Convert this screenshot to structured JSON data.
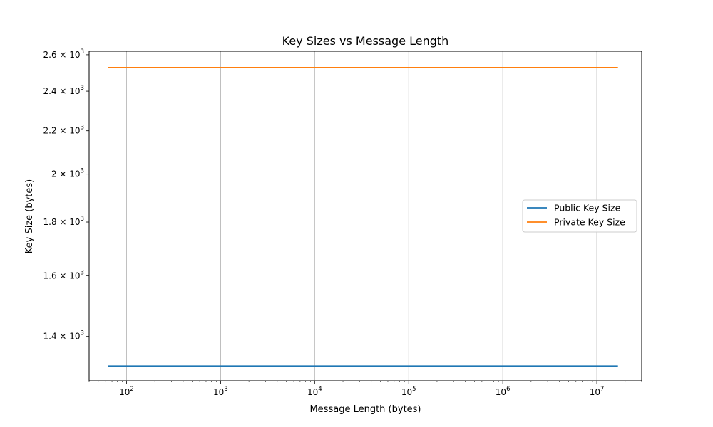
{
  "chart_data": {
    "type": "line",
    "title": "Key Sizes vs Message Length",
    "xlabel": "Message Length (bytes)",
    "ylabel": "Key Size (bytes)",
    "xscale": "log",
    "yscale": "log",
    "xlim": [
      40,
      30000000
    ],
    "ylim": [
      1270,
      2620
    ],
    "x": [
      64,
      128,
      256,
      512,
      1024,
      2048,
      4096,
      8192,
      16384,
      32768,
      65536,
      131072,
      262144,
      524288,
      1048576,
      2097152,
      4194304,
      8388608,
      16777216
    ],
    "series": [
      {
        "name": "Public Key Size",
        "color": "#1f77b4",
        "values": [
          1312,
          1312,
          1312,
          1312,
          1312,
          1312,
          1312,
          1312,
          1312,
          1312,
          1312,
          1312,
          1312,
          1312,
          1312,
          1312,
          1312,
          1312,
          1312
        ]
      },
      {
        "name": "Private Key Size",
        "color": "#ff7f0e",
        "values": [
          2528,
          2528,
          2528,
          2528,
          2528,
          2528,
          2528,
          2528,
          2528,
          2528,
          2528,
          2528,
          2528,
          2528,
          2528,
          2528,
          2528,
          2528,
          2528
        ]
      }
    ],
    "x_ticks": [
      {
        "value": 100,
        "base": "10",
        "exp": "2"
      },
      {
        "value": 1000,
        "base": "10",
        "exp": "3"
      },
      {
        "value": 10000,
        "base": "10",
        "exp": "4"
      },
      {
        "value": 100000,
        "base": "10",
        "exp": "5"
      },
      {
        "value": 1000000,
        "base": "10",
        "exp": "6"
      },
      {
        "value": 10000000,
        "base": "10",
        "exp": "7"
      }
    ],
    "y_ticks": [
      {
        "value": 1400,
        "mant": "1.4",
        "base": "10",
        "exp": "3"
      },
      {
        "value": 1600,
        "mant": "1.6",
        "base": "10",
        "exp": "3"
      },
      {
        "value": 1800,
        "mant": "1.8",
        "base": "10",
        "exp": "3"
      },
      {
        "value": 2000,
        "mant": "2",
        "base": "10",
        "exp": "3"
      },
      {
        "value": 2200,
        "mant": "2.2",
        "base": "10",
        "exp": "3"
      },
      {
        "value": 2400,
        "mant": "2.4",
        "base": "10",
        "exp": "3"
      },
      {
        "value": 2600,
        "mant": "2.6",
        "base": "10",
        "exp": "3"
      }
    ],
    "grid": "x-major",
    "legend_position": "center-right"
  }
}
